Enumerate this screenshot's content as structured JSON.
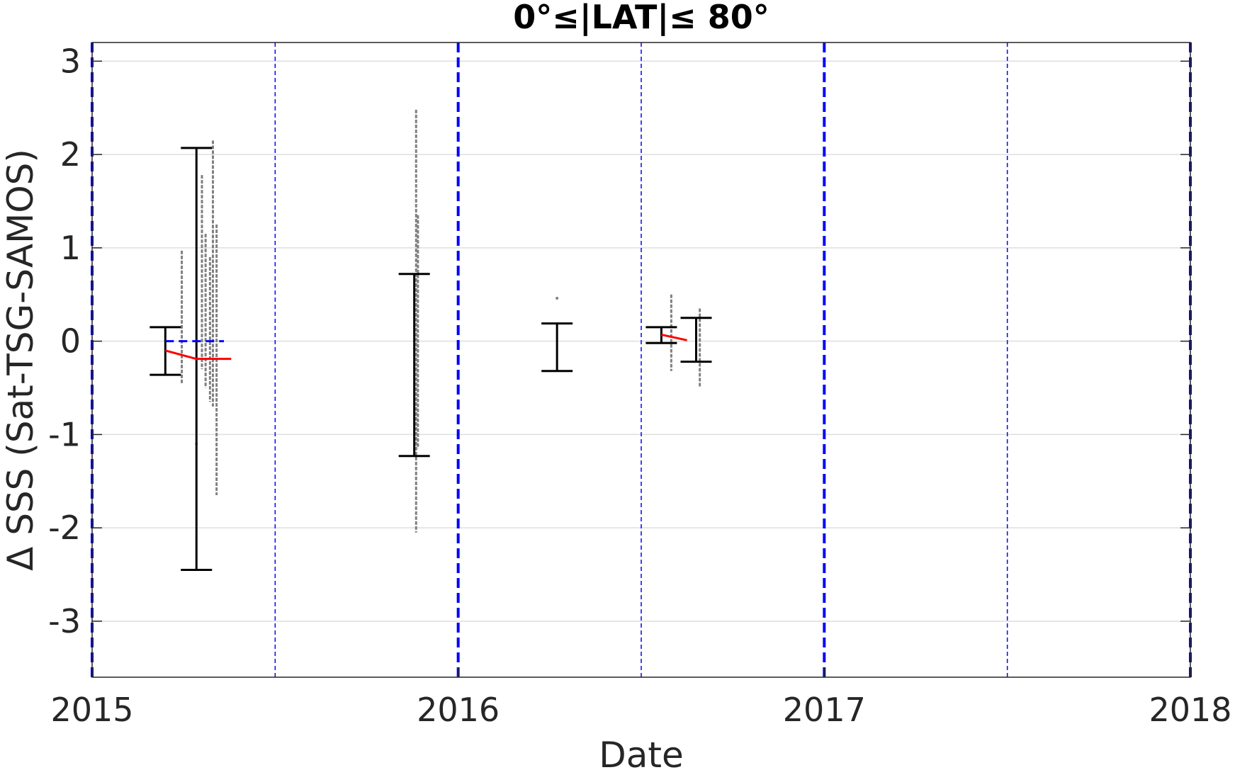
{
  "chart_data": {
    "type": "scatter",
    "title": "0°≤|LAT|≤ 80°",
    "xlabel": "Date",
    "ylabel": "Δ SSS (Sat-TSG-SAMOS)",
    "xlim": [
      2015.0,
      2018.0
    ],
    "ylim": [
      -3.6,
      3.2
    ],
    "xticks": [
      2015,
      2016,
      2017,
      2018
    ],
    "xtick_labels": [
      "2015",
      "2016",
      "2017",
      "2018"
    ],
    "yticks": [
      -3,
      -2,
      -1,
      0,
      1,
      2,
      3
    ],
    "ytick_labels": [
      "-3",
      "-2",
      "-1",
      "0",
      "1",
      "2",
      "3"
    ],
    "grid": "horizontal",
    "year_boundaries": [
      2015.0,
      2016.0,
      2017.0,
      2018.0
    ],
    "half_year_markers": [
      2015.5,
      2016.5,
      2017.5
    ],
    "colors": {
      "points": "#808080",
      "errorbars": "#000000",
      "mean_line": "#ff0000",
      "reference_line": "#0000ff",
      "markers": "#0000ff",
      "grid": "#dedede"
    },
    "errorbars": [
      {
        "x": 2015.2,
        "low": -0.36,
        "high": 0.15
      },
      {
        "x": 2015.285,
        "low": -2.45,
        "high": 2.07
      },
      {
        "x": 2015.88,
        "low": -1.23,
        "high": 0.72
      },
      {
        "x": 2016.27,
        "low": -0.32,
        "high": 0.19
      },
      {
        "x": 2016.555,
        "low": -0.02,
        "high": 0.15
      },
      {
        "x": 2016.65,
        "low": -0.22,
        "high": 0.25
      }
    ],
    "mean_series": [
      {
        "name": "",
        "x": [
          2015.2,
          2015.285,
          2015.38
        ],
        "y": [
          -0.1,
          -0.19,
          -0.19
        ]
      },
      {
        "name": "",
        "x": [
          2016.555,
          2016.625
        ],
        "y": [
          0.07,
          0.01
        ]
      }
    ],
    "reference_line": {
      "x": [
        2015.2,
        2015.36
      ],
      "y": [
        0,
        0
      ]
    },
    "point_columns": [
      {
        "x": 2015.245,
        "y_min": -0.45,
        "y_max": 0.97
      },
      {
        "x": 2015.3,
        "y_min": -0.3,
        "y_max": 1.78
      },
      {
        "x": 2015.31,
        "y_min": -0.5,
        "y_max": 1.15
      },
      {
        "x": 2015.33,
        "y_min": -0.7,
        "y_max": 2.15
      },
      {
        "x": 2015.322,
        "y_min": -0.65,
        "y_max": 0.9
      },
      {
        "x": 2015.34,
        "y_min": -1.65,
        "y_max": 1.25
      },
      {
        "x": 2015.885,
        "y_min": -2.05,
        "y_max": 2.48
      },
      {
        "x": 2015.89,
        "y_min": -1.15,
        "y_max": 1.35
      },
      {
        "x": 2016.582,
        "y_min": -0.32,
        "y_max": 0.5
      },
      {
        "x": 2016.66,
        "y_min": -0.5,
        "y_max": 0.35
      }
    ],
    "isolated_points": [
      {
        "x": 2016.27,
        "y": 0.46
      },
      {
        "x": 2015.285,
        "y": -1.1
      }
    ]
  }
}
